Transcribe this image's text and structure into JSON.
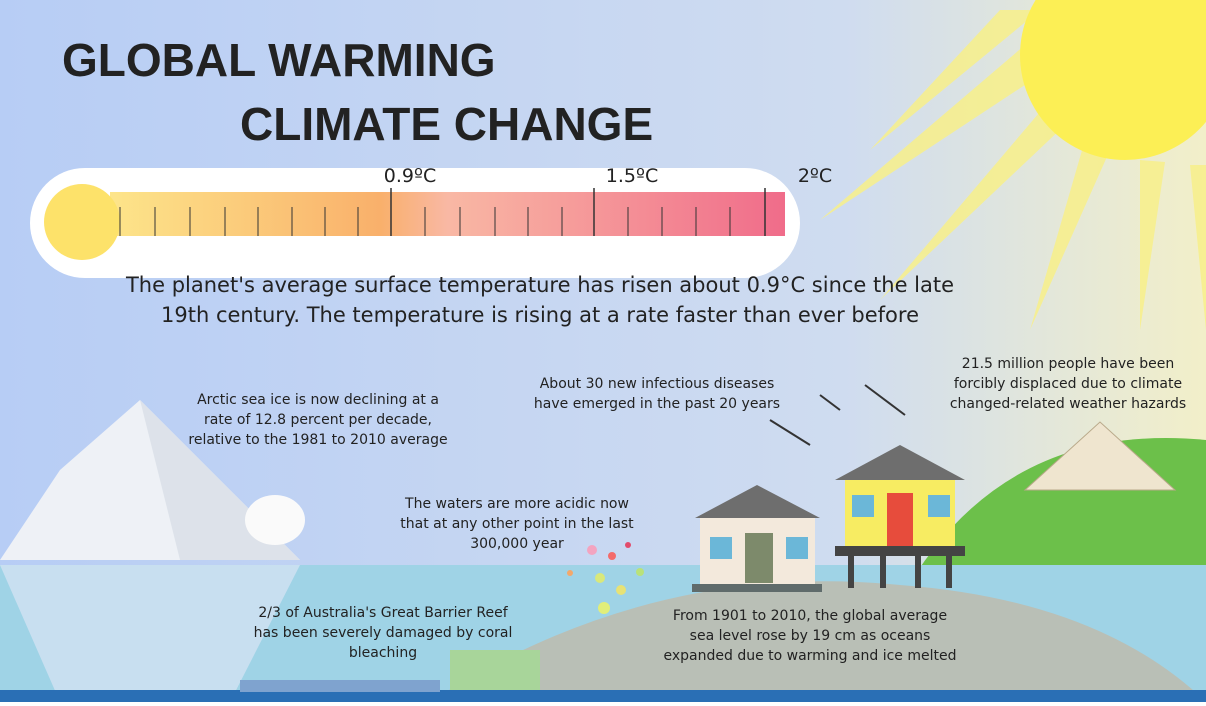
{
  "header": {
    "title": [
      "GLOBAL WARMING",
      "CLIMATE CHANGE"
    ]
  },
  "thermometer": {
    "labels": [
      "0.9ºC",
      "1.5ºC",
      "2ºC"
    ]
  },
  "summary": [
    "The planet's average surface temperature has risen about 0.9°C since the late",
    "19th century. The temperature is rising at a rate faster than ever before"
  ],
  "facts": [
    {
      "lines": [
        "Arctic sea ice is now declining at a",
        "rate of 12.8 percent per decade,",
        "relative to the 1981 to 2010 average"
      ]
    },
    {
      "lines": [
        "About 30 new infectious diseases",
        "have emerged in the past 20 years"
      ]
    },
    {
      "lines": [
        "21.5 million people have been",
        "forcibly displaced due to climate",
        "changed-related weather hazards"
      ]
    },
    {
      "lines": [
        "The waters are more acidic now",
        "that at any other point in the last",
        "300,000 year"
      ]
    },
    {
      "lines": [
        "2/3 of Australia's Great Barrier Reef",
        "has been severely damaged by coral",
        "bleaching"
      ]
    },
    {
      "lines": [
        "From 1901 to 2010, the global average",
        "sea level rose by 19 cm as oceans",
        "expanded due to warming and ice melted"
      ]
    }
  ]
}
